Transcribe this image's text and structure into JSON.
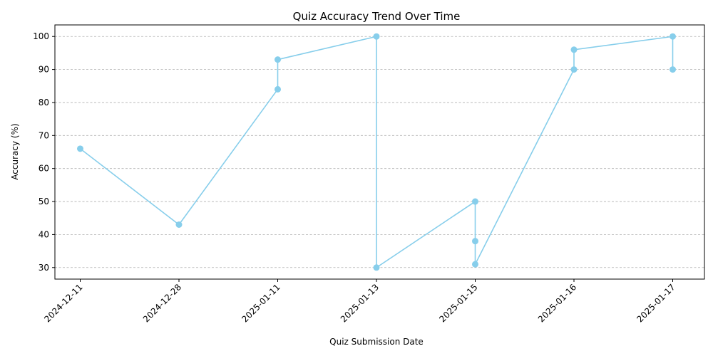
{
  "chart_data": {
    "type": "line",
    "title": "Quiz Accuracy Trend Over Time",
    "xlabel": "Quiz Submission Date",
    "ylabel": "Accuracy (%)",
    "x_ticks": [
      "2024-12-11",
      "2024-12-28",
      "2025-01-11",
      "2025-01-13",
      "2025-01-15",
      "2025-01-16",
      "2025-01-17"
    ],
    "y_ticks": [
      30,
      40,
      50,
      60,
      70,
      80,
      90,
      100
    ],
    "ylim": [
      26.5,
      103.5
    ],
    "grid": "y-axis dashed",
    "series_color": "#87ceeb",
    "x": [
      "2024-12-11",
      "2024-12-28",
      "2025-01-11",
      "2025-01-11",
      "2025-01-13",
      "2025-01-13",
      "2025-01-15",
      "2025-01-15",
      "2025-01-15",
      "2025-01-16",
      "2025-01-16",
      "2025-01-17",
      "2025-01-17"
    ],
    "values": [
      66,
      43,
      84,
      93,
      100,
      30,
      50,
      38,
      31,
      90,
      96,
      100,
      90
    ]
  }
}
